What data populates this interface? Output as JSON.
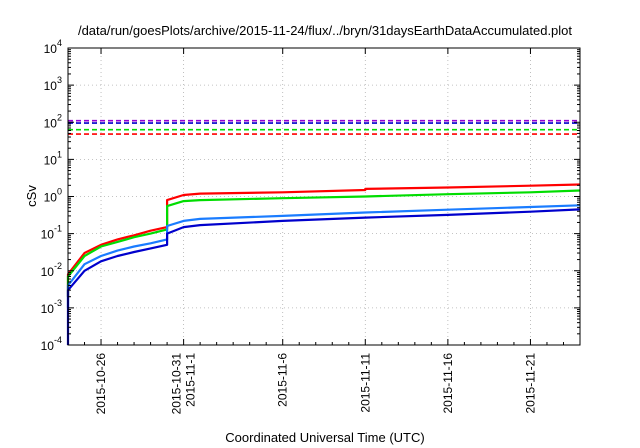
{
  "chart_data": {
    "type": "line",
    "title": "/data/run/goesPlots/archive/2015-11-24/flux/../bryn/31daysEarthDataAccumulated.plot",
    "xlabel": "Coordinated Universal Time (UTC)",
    "ylabel": "cSv",
    "y_scale": "log",
    "ylim": [
      0.0001,
      10000
    ],
    "xlim": [
      "2015-10-24",
      "2015-11-24"
    ],
    "grid": true,
    "legend": "none",
    "y_ticks": [
      {
        "base": "10",
        "exp": "-4",
        "value": 0.0001
      },
      {
        "base": "10",
        "exp": "-3",
        "value": 0.001
      },
      {
        "base": "10",
        "exp": "-2",
        "value": 0.01
      },
      {
        "base": "10",
        "exp": "-1",
        "value": 0.1
      },
      {
        "base": "10",
        "exp": "0",
        "value": 1
      },
      {
        "base": "10",
        "exp": "1",
        "value": 10
      },
      {
        "base": "10",
        "exp": "2",
        "value": 100
      },
      {
        "base": "10",
        "exp": "3",
        "value": 1000
      },
      {
        "base": "10",
        "exp": "4",
        "value": 10000
      }
    ],
    "x_ticks": [
      {
        "date": "2015-10-26",
        "labels": [
          "2015-10-26"
        ]
      },
      {
        "date": "2015-10-31",
        "labels": [
          "2015-10-31",
          "2015-11-1"
        ]
      },
      {
        "date": "2015-11-06",
        "labels": [
          "2015-11-6"
        ]
      },
      {
        "date": "2015-11-11",
        "labels": [
          "2015-11-11"
        ]
      },
      {
        "date": "2015-11-16",
        "labels": [
          "2015-11-16"
        ]
      },
      {
        "date": "2015-11-21",
        "labels": [
          "2015-11-21"
        ]
      }
    ],
    "series": [
      {
        "color": "#ff0000",
        "style": "solid",
        "x": [
          "2015-10-24",
          "2015-10-24",
          "2015-10-25",
          "2015-10-26",
          "2015-10-27",
          "2015-10-28",
          "2015-10-29",
          "2015-10-30",
          "2015-10-30",
          "2015-10-31",
          "2015-11-01",
          "2015-11-06",
          "2015-11-11",
          "2015-11-11",
          "2015-11-16",
          "2015-11-21",
          "2015-11-24"
        ],
        "y": [
          0.002,
          0.008,
          0.03,
          0.05,
          0.07,
          0.09,
          0.12,
          0.15,
          0.8,
          1.1,
          1.2,
          1.3,
          1.5,
          1.6,
          1.75,
          1.95,
          2.1
        ]
      },
      {
        "color": "#00dd00",
        "style": "solid",
        "x": [
          "2015-10-24",
          "2015-10-24",
          "2015-10-25",
          "2015-10-26",
          "2015-10-27",
          "2015-10-28",
          "2015-10-29",
          "2015-10-30",
          "2015-10-30",
          "2015-10-31",
          "2015-11-01",
          "2015-11-06",
          "2015-11-11",
          "2015-11-16",
          "2015-11-21",
          "2015-11-24"
        ],
        "y": [
          0.002,
          0.007,
          0.025,
          0.045,
          0.06,
          0.08,
          0.1,
          0.13,
          0.55,
          0.75,
          0.8,
          0.9,
          1.0,
          1.15,
          1.3,
          1.45
        ]
      },
      {
        "color": "#1a7cff",
        "style": "solid",
        "x": [
          "2015-10-24",
          "2015-10-24",
          "2015-10-25",
          "2015-10-26",
          "2015-10-27",
          "2015-10-28",
          "2015-10-29",
          "2015-10-30",
          "2015-10-30",
          "2015-10-31",
          "2015-11-01",
          "2015-11-06",
          "2015-11-11",
          "2015-11-16",
          "2015-11-21",
          "2015-11-24"
        ],
        "y": [
          0.001,
          0.004,
          0.015,
          0.025,
          0.035,
          0.045,
          0.055,
          0.07,
          0.16,
          0.22,
          0.25,
          0.3,
          0.37,
          0.44,
          0.52,
          0.58
        ]
      },
      {
        "color": "#0000cc",
        "style": "solid",
        "x": [
          "2015-10-24",
          "2015-10-24",
          "2015-10-25",
          "2015-10-26",
          "2015-10-27",
          "2015-10-28",
          "2015-10-29",
          "2015-10-30",
          "2015-10-30",
          "2015-10-31",
          "2015-11-01",
          "2015-11-06",
          "2015-11-11",
          "2015-11-16",
          "2015-11-21",
          "2015-11-24"
        ],
        "y": [
          0.0001,
          0.003,
          0.01,
          0.018,
          0.025,
          0.032,
          0.04,
          0.05,
          0.1,
          0.15,
          0.17,
          0.22,
          0.27,
          0.32,
          0.39,
          0.45
        ]
      },
      {
        "color": "#9400d3",
        "style": "dashed",
        "x": [
          "2015-10-24",
          "2015-11-24"
        ],
        "y": [
          110,
          110
        ]
      },
      {
        "color": "#0000cc",
        "style": "dashed",
        "x": [
          "2015-10-24",
          "2015-11-24"
        ],
        "y": [
          95,
          95
        ]
      },
      {
        "color": "#00dd00",
        "style": "dashed",
        "x": [
          "2015-10-24",
          "2015-11-24"
        ],
        "y": [
          63,
          63
        ]
      },
      {
        "color": "#ff0000",
        "style": "dashed",
        "x": [
          "2015-10-24",
          "2015-11-24"
        ],
        "y": [
          48,
          48
        ]
      }
    ]
  }
}
